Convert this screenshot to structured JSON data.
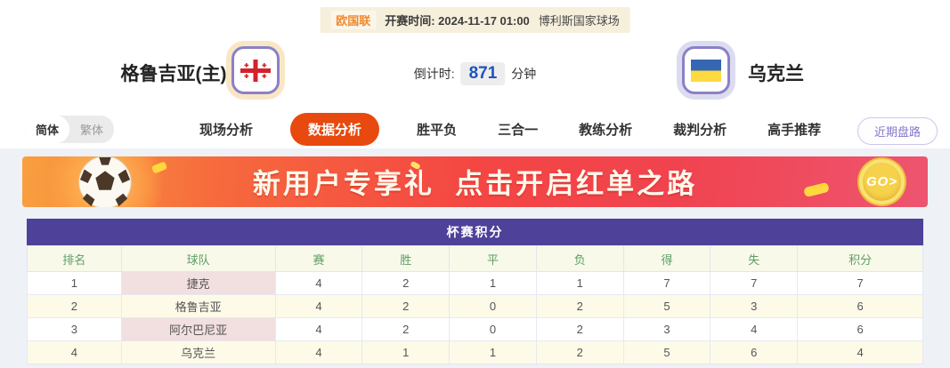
{
  "top_bar": {
    "league": "欧国联",
    "kickoff": "开赛时间: 2024-11-17 01:00",
    "venue": "博利斯国家球场"
  },
  "match": {
    "home": {
      "name": "格鲁吉亚(主)",
      "flag": "georgia-flag"
    },
    "away": {
      "name": "乌克兰",
      "flag": "ukraine-flag"
    },
    "countdown": {
      "label": "倒计时:",
      "value": "871",
      "unit": "分钟"
    }
  },
  "lang_toggle": {
    "simplified": "简体",
    "traditional": "繁体"
  },
  "nav": {
    "tabs": [
      {
        "name": "live-analysis",
        "label": "现场分析",
        "active": false
      },
      {
        "name": "data-analysis",
        "label": "数据分析",
        "active": true
      },
      {
        "name": "win-draw-loss",
        "label": "胜平负",
        "active": false
      },
      {
        "name": "three-in-one",
        "label": "三合一",
        "active": false
      },
      {
        "name": "coach-analysis",
        "label": "教练分析",
        "active": false
      },
      {
        "name": "referee-analysis",
        "label": "裁判分析",
        "active": false
      },
      {
        "name": "expert-picks",
        "label": "高手推荐",
        "active": false
      }
    ],
    "recent_button": "近期盘路"
  },
  "banner": {
    "text": "新用户专享礼  点击开启红单之路",
    "go_label": "GO>",
    "icon": "soccer-ball-icon"
  },
  "table": {
    "title": "杯赛积分",
    "headers": [
      "排名",
      "球队",
      "赛",
      "胜",
      "平",
      "负",
      "得",
      "失",
      "积分"
    ],
    "rows": [
      [
        "1",
        "捷克",
        "4",
        "2",
        "1",
        "1",
        "7",
        "7",
        "7"
      ],
      [
        "2",
        "格鲁吉亚",
        "4",
        "2",
        "0",
        "2",
        "5",
        "3",
        "6"
      ],
      [
        "3",
        "阿尔巴尼亚",
        "4",
        "2",
        "0",
        "2",
        "3",
        "4",
        "6"
      ],
      [
        "4",
        "乌克兰",
        "4",
        "1",
        "1",
        "2",
        "5",
        "6",
        "4"
      ]
    ]
  },
  "colors": {
    "accent_orange": "#e8490f",
    "table_title_purple": "#4e4199",
    "countdown_blue": "#1d54bd",
    "banner_red": "#f44643",
    "header_green": "#5d9e66",
    "team_cell_pink": "#f2dfdf",
    "stripe_yellow": "#fdfae8",
    "top_bar_beige": "#f6efdc"
  }
}
